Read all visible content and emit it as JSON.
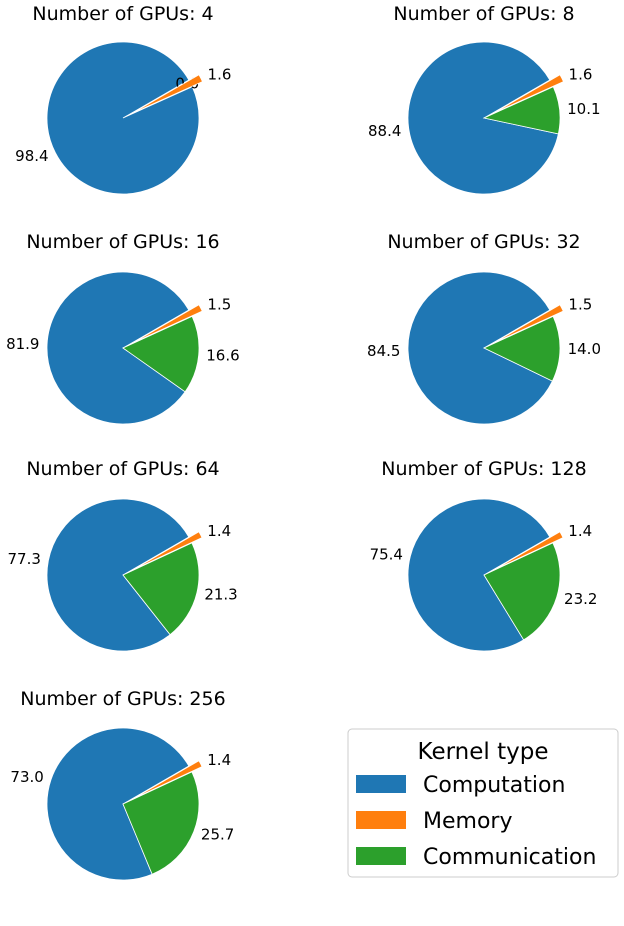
{
  "colors": {
    "computation": "#1f77b4",
    "memory": "#ff7f0e",
    "communication": "#2ca02c"
  },
  "chart_data": [
    {
      "type": "pie",
      "title": "Number of GPUs: 4",
      "slices": [
        {
          "category": "computation",
          "value": 98.4,
          "label": "98.4"
        },
        {
          "category": "memory",
          "value": 1.6,
          "label": "1.6"
        },
        {
          "category": "communication",
          "value": 0.0,
          "label": "0.0"
        }
      ]
    },
    {
      "type": "pie",
      "title": "Number of GPUs: 8",
      "slices": [
        {
          "category": "computation",
          "value": 88.4,
          "label": "88.4"
        },
        {
          "category": "memory",
          "value": 1.6,
          "label": "1.6"
        },
        {
          "category": "communication",
          "value": 10.1,
          "label": "10.1"
        }
      ]
    },
    {
      "type": "pie",
      "title": "Number of GPUs: 16",
      "slices": [
        {
          "category": "computation",
          "value": 81.9,
          "label": "81.9"
        },
        {
          "category": "memory",
          "value": 1.5,
          "label": "1.5"
        },
        {
          "category": "communication",
          "value": 16.6,
          "label": "16.6"
        }
      ]
    },
    {
      "type": "pie",
      "title": "Number of GPUs: 32",
      "slices": [
        {
          "category": "computation",
          "value": 84.5,
          "label": "84.5"
        },
        {
          "category": "memory",
          "value": 1.5,
          "label": "1.5"
        },
        {
          "category": "communication",
          "value": 14.0,
          "label": "14.0"
        }
      ]
    },
    {
      "type": "pie",
      "title": "Number of GPUs: 64",
      "slices": [
        {
          "category": "computation",
          "value": 77.3,
          "label": "77.3"
        },
        {
          "category": "memory",
          "value": 1.4,
          "label": "1.4"
        },
        {
          "category": "communication",
          "value": 21.3,
          "label": "21.3"
        }
      ]
    },
    {
      "type": "pie",
      "title": "Number of GPUs: 128",
      "slices": [
        {
          "category": "computation",
          "value": 75.4,
          "label": "75.4"
        },
        {
          "category": "memory",
          "value": 1.4,
          "label": "1.4"
        },
        {
          "category": "communication",
          "value": 23.2,
          "label": "23.2"
        }
      ]
    },
    {
      "type": "pie",
      "title": "Number of GPUs: 256",
      "slices": [
        {
          "category": "computation",
          "value": 73.0,
          "label": "73.0"
        },
        {
          "category": "memory",
          "value": 1.4,
          "label": "1.4"
        },
        {
          "category": "communication",
          "value": 25.7,
          "label": "25.7"
        }
      ]
    }
  ],
  "legend": {
    "title": "Kernel type",
    "placement": "lower-right",
    "entries": [
      {
        "category": "computation",
        "label": "Computation"
      },
      {
        "category": "memory",
        "label": "Memory"
      },
      {
        "category": "communication",
        "label": "Communication"
      }
    ]
  }
}
